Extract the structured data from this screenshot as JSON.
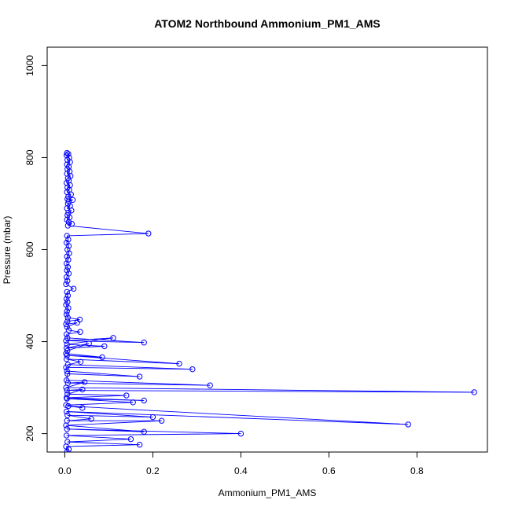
{
  "chart_data": {
    "type": "line",
    "title": "ATOM2 Northbound Ammonium_PM1_AMS",
    "xlabel": "Ammonium_PM1_AMS",
    "ylabel": "Pressure (mbar)",
    "xlim": [
      -0.04,
      0.96
    ],
    "ylim": [
      1040,
      160
    ],
    "y_reversed": true,
    "x_ticks": [
      0.0,
      0.2,
      0.4,
      0.6,
      0.8
    ],
    "x_tick_labels": [
      "0.0",
      "0.2",
      "0.4",
      "0.6",
      "0.8"
    ],
    "y_ticks": [
      200,
      400,
      600,
      800,
      1000
    ],
    "y_tick_labels": [
      "200",
      "400",
      "600",
      "800",
      "1000"
    ],
    "grid": false,
    "series": [
      {
        "color": "#0000ff",
        "marker": "open-circle",
        "points": [
          [
            0.005,
            810
          ],
          [
            0.008,
            808
          ],
          [
            0.004,
            805
          ],
          [
            0.01,
            800
          ],
          [
            0.006,
            795
          ],
          [
            0.012,
            790
          ],
          [
            0.005,
            785
          ],
          [
            0.009,
            780
          ],
          [
            0.006,
            775
          ],
          [
            0.011,
            770
          ],
          [
            0.005,
            765
          ],
          [
            0.013,
            760
          ],
          [
            0.007,
            755
          ],
          [
            0.009,
            750
          ],
          [
            0.004,
            745
          ],
          [
            0.012,
            740
          ],
          [
            0.006,
            735
          ],
          [
            0.01,
            730
          ],
          [
            0.005,
            725
          ],
          [
            0.014,
            720
          ],
          [
            0.008,
            715
          ],
          [
            0.006,
            710
          ],
          [
            0.018,
            708
          ],
          [
            0.009,
            705
          ],
          [
            0.007,
            700
          ],
          [
            0.012,
            695
          ],
          [
            0.005,
            690
          ],
          [
            0.015,
            685
          ],
          [
            0.008,
            680
          ],
          [
            0.006,
            675
          ],
          [
            0.011,
            670
          ],
          [
            0.005,
            665
          ],
          [
            0.009,
            660
          ],
          [
            0.016,
            656
          ],
          [
            0.007,
            652
          ],
          [
            0.19,
            635
          ],
          [
            0.005,
            630
          ],
          [
            0.008,
            622
          ],
          [
            0.004,
            615
          ],
          [
            0.009,
            608
          ],
          [
            0.006,
            600
          ],
          [
            0.01,
            592
          ],
          [
            0.005,
            585
          ],
          [
            0.008,
            578
          ],
          [
            0.004,
            570
          ],
          [
            0.007,
            562
          ],
          [
            0.005,
            555
          ],
          [
            0.009,
            548
          ],
          [
            0.004,
            540
          ],
          [
            0.006,
            532
          ],
          [
            0.003,
            525
          ],
          [
            0.02,
            515
          ],
          [
            0.005,
            508
          ],
          [
            0.007,
            500
          ],
          [
            0.004,
            493
          ],
          [
            0.006,
            486
          ],
          [
            0.003,
            480
          ],
          [
            0.008,
            473
          ],
          [
            0.005,
            466
          ],
          [
            0.004,
            459
          ],
          [
            0.007,
            452
          ],
          [
            0.034,
            448
          ],
          [
            0.006,
            444
          ],
          [
            0.003,
            438
          ],
          [
            0.028,
            441
          ],
          [
            0.005,
            432
          ],
          [
            0.009,
            425
          ],
          [
            0.035,
            421
          ],
          [
            0.004,
            416
          ],
          [
            0.006,
            408
          ],
          [
            0.18,
            398
          ],
          [
            0.003,
            402
          ],
          [
            0.11,
            408
          ],
          [
            0.005,
            394
          ],
          [
            0.09,
            390
          ],
          [
            0.004,
            386
          ],
          [
            0.055,
            396
          ],
          [
            0.006,
            380
          ],
          [
            0.003,
            374
          ],
          [
            0.085,
            366
          ],
          [
            0.005,
            370
          ],
          [
            0.26,
            352
          ],
          [
            0.004,
            362
          ],
          [
            0.036,
            356
          ],
          [
            0.007,
            350
          ],
          [
            0.29,
            340
          ],
          [
            0.003,
            344
          ],
          [
            0.005,
            336
          ],
          [
            0.17,
            324
          ],
          [
            0.006,
            330
          ],
          [
            0.004,
            316
          ],
          [
            0.33,
            305
          ],
          [
            0.007,
            310
          ],
          [
            0.045,
            312
          ],
          [
            0.003,
            300
          ],
          [
            0.93,
            290
          ],
          [
            0.005,
            294
          ],
          [
            0.04,
            296
          ],
          [
            0.006,
            286
          ],
          [
            0.14,
            283
          ],
          [
            0.004,
            278
          ],
          [
            0.18,
            272
          ],
          [
            0.005,
            276
          ],
          [
            0.155,
            268
          ],
          [
            0.003,
            262
          ],
          [
            0.04,
            256
          ],
          [
            0.008,
            260
          ],
          [
            0.78,
            220
          ],
          [
            0.004,
            248
          ],
          [
            0.2,
            236
          ],
          [
            0.006,
            240
          ],
          [
            0.06,
            232
          ],
          [
            0.005,
            228
          ],
          [
            0.22,
            228
          ],
          [
            0.003,
            218
          ],
          [
            0.18,
            204
          ],
          [
            0.005,
            210
          ],
          [
            0.4,
            200
          ],
          [
            0.004,
            196
          ],
          [
            0.15,
            188
          ],
          [
            0.006,
            182
          ],
          [
            0.17,
            176
          ],
          [
            0.003,
            172
          ],
          [
            0.009,
            166
          ],
          [
            0.005,
            160
          ]
        ]
      }
    ]
  }
}
